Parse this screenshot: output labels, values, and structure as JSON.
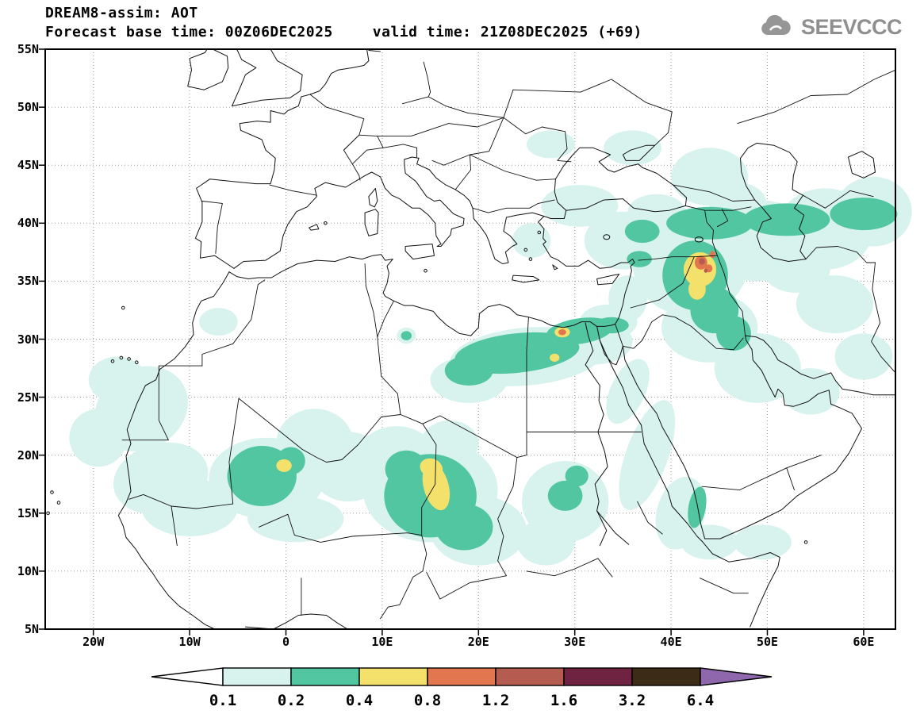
{
  "header": {
    "title": "DREAM8-assim: AOT",
    "base_time": "Forecast base time: 00Z06DEC2025",
    "valid_time": "valid time: 21Z08DEC2025 (+69)"
  },
  "logo": {
    "text": "SEEVCCC"
  },
  "map": {
    "lat_ticks": [
      "55N",
      "50N",
      "45N",
      "40N",
      "35N",
      "30N",
      "25N",
      "20N",
      "15N",
      "10N",
      "5N"
    ],
    "lon_ticks": [
      "20W",
      "10W",
      "0",
      "10E",
      "20E",
      "30E",
      "40E",
      "50E",
      "60E"
    ]
  },
  "legend": {
    "labels": [
      "0.1",
      "0.2",
      "0.4",
      "0.8",
      "1.2",
      "1.6",
      "3.2",
      "6.4"
    ],
    "segment_colors": [
      "#ffffff",
      "#d8f3ee",
      "#52c6a0",
      "#f4e16b",
      "#e2764f",
      "#b45c50",
      "#6f2340",
      "#3c2b16",
      "#8f67ad"
    ]
  },
  "chart_data": {
    "type": "filled-contour-map",
    "title": "DREAM8-assim: AOT",
    "variable": "AOT",
    "forecast_base_time": "00Z06DEC2025",
    "valid_time": "21Z08DEC2025 (+69)",
    "lon_range": [
      -25,
      63.3
    ],
    "lat_range": [
      5,
      55
    ],
    "lon_ticks_deg": [
      -20,
      -10,
      0,
      10,
      20,
      30,
      40,
      50,
      60
    ],
    "lat_ticks_deg": [
      55,
      50,
      45,
      40,
      35,
      30,
      25,
      20,
      15,
      10,
      5
    ],
    "contour_levels": [
      0.1,
      0.2,
      0.4,
      0.8,
      1.2,
      1.6,
      3.2,
      6.4
    ],
    "grid": "dotted 5deg lat / 10deg lon",
    "regions": [
      {
        "level": 0.1,
        "color": "#d8f3ee",
        "ellipses": [
          [
            -15,
            24,
            5,
            3.5,
            -30
          ],
          [
            -13,
            18,
            5,
            3,
            -15
          ],
          [
            -17.5,
            26.5,
            3,
            2,
            0
          ],
          [
            -10,
            15.5,
            5,
            2.5,
            0
          ],
          [
            -19.5,
            21.5,
            3,
            2.5,
            0
          ],
          [
            -2,
            18,
            6,
            3.5,
            0
          ],
          [
            3,
            21,
            4,
            3,
            0
          ],
          [
            6.5,
            19,
            4,
            3,
            0
          ],
          [
            1,
            14.5,
            5,
            2,
            0
          ],
          [
            15,
            17,
            7,
            4.5,
            0
          ],
          [
            20,
            13.5,
            5,
            3,
            0
          ],
          [
            11.5,
            20,
            4,
            2.5,
            0
          ],
          [
            17,
            21,
            3,
            2,
            0
          ],
          [
            25,
            28.5,
            8,
            2.5,
            -5
          ],
          [
            32,
            29.8,
            4,
            2,
            0
          ],
          [
            19,
            26.5,
            4,
            2,
            0
          ],
          [
            29,
            16,
            4.5,
            3.5,
            0
          ],
          [
            27,
            12.5,
            3,
            2,
            0
          ],
          [
            37.5,
            20,
            2.2,
            5,
            20
          ],
          [
            41,
            15,
            2.5,
            3.2,
            15
          ],
          [
            35.5,
            25.5,
            1.8,
            3,
            25
          ],
          [
            49,
            27.5,
            4.5,
            3,
            0
          ],
          [
            54.5,
            25.5,
            3,
            2,
            0
          ],
          [
            44,
            31,
            5,
            3,
            0
          ],
          [
            42,
            36.5,
            6,
            4.5,
            0
          ],
          [
            49,
            38.5,
            6,
            3.5,
            0
          ],
          [
            56,
            39.5,
            5,
            3.5,
            0
          ],
          [
            61,
            41,
            4,
            3,
            0
          ],
          [
            35,
            38.5,
            4,
            2.5,
            0
          ],
          [
            30.5,
            41.5,
            4,
            1.8,
            0
          ],
          [
            44,
            44,
            4,
            2.5,
            0
          ],
          [
            36,
            46.5,
            3,
            1.5,
            0
          ],
          [
            27.5,
            46.8,
            2.5,
            1.2,
            0
          ],
          [
            57,
            33,
            4,
            2.5,
            0
          ],
          [
            60,
            28.5,
            3,
            2,
            0
          ],
          [
            47,
            41.5,
            3,
            2,
            0
          ],
          [
            53,
            36,
            3.5,
            2,
            0
          ],
          [
            38.5,
            41,
            3,
            1.5,
            0
          ],
          [
            25.5,
            38.5,
            2,
            1.5,
            0
          ],
          [
            35.5,
            33.5,
            2,
            2,
            0
          ],
          [
            33.5,
            31.5,
            3,
            1.5,
            0
          ],
          [
            44,
            12.5,
            3,
            1.5,
            0
          ],
          [
            49.5,
            12.5,
            3,
            1.5,
            0
          ],
          [
            12.5,
            30.3,
            1,
            0.7,
            0
          ],
          [
            -7,
            31.5,
            2,
            1.2,
            0
          ]
        ]
      },
      {
        "level": 0.2,
        "color": "#52c6a0",
        "ellipses": [
          [
            -2.5,
            18.2,
            3.6,
            2.6,
            0
          ],
          [
            0.5,
            19.5,
            1.5,
            1.2,
            0
          ],
          [
            15,
            16.5,
            4.8,
            3.6,
            0
          ],
          [
            18.5,
            13.8,
            3,
            2,
            0
          ],
          [
            12.5,
            18.8,
            2.2,
            1.6,
            0
          ],
          [
            24,
            28.8,
            6.5,
            1.7,
            -6
          ],
          [
            30.5,
            30.7,
            3.5,
            1.1,
            -8
          ],
          [
            33.8,
            31.2,
            1.8,
            0.7,
            0
          ],
          [
            19,
            27.3,
            2.5,
            1.3,
            0
          ],
          [
            42.5,
            35.5,
            3.4,
            3,
            0
          ],
          [
            44.5,
            32.5,
            2.5,
            2,
            0
          ],
          [
            46.5,
            30.5,
            1.8,
            1.5,
            0
          ],
          [
            44,
            40,
            4.5,
            1.4,
            0
          ],
          [
            52,
            40.3,
            4.5,
            1.4,
            0
          ],
          [
            60,
            40.8,
            3.5,
            1.4,
            0
          ],
          [
            37,
            39.3,
            1.8,
            1,
            0
          ],
          [
            29,
            16.5,
            1.8,
            1.3,
            0
          ],
          [
            42.7,
            15.5,
            0.9,
            1.8,
            10
          ],
          [
            12.5,
            30.3,
            0.55,
            0.4,
            0
          ],
          [
            36.7,
            36.9,
            1.3,
            0.7,
            0
          ],
          [
            30.2,
            18.2,
            1.2,
            0.9,
            0
          ]
        ]
      },
      {
        "level": 0.4,
        "color": "#f4e16b",
        "ellipses": [
          [
            15.6,
            17.3,
            1.3,
            2.1,
            -15
          ],
          [
            15.1,
            18.9,
            1.2,
            0.8,
            20
          ],
          [
            -0.2,
            19.1,
            0.8,
            0.55,
            0
          ],
          [
            43,
            36,
            1.7,
            1.5,
            0
          ],
          [
            42.7,
            34.3,
            0.9,
            0.9,
            0
          ],
          [
            28.7,
            30.6,
            0.8,
            0.45,
            0
          ],
          [
            27.9,
            28.4,
            0.5,
            0.35,
            0
          ]
        ]
      },
      {
        "level": 0.8,
        "color": "#e2764f",
        "ellipses": [
          [
            43.1,
            36.6,
            0.65,
            0.6,
            0
          ],
          [
            43.9,
            36.1,
            0.4,
            0.35,
            0
          ],
          [
            28.7,
            30.6,
            0.4,
            0.25,
            0
          ],
          [
            44.3,
            37.3,
            0.3,
            0.3,
            0
          ]
        ]
      },
      {
        "level": 1.2,
        "color": "#b45c50",
        "ellipses": [
          [
            43.2,
            36.7,
            0.32,
            0.28,
            0
          ],
          [
            43.6,
            35.9,
            0.18,
            0.18,
            0
          ]
        ]
      }
    ]
  }
}
